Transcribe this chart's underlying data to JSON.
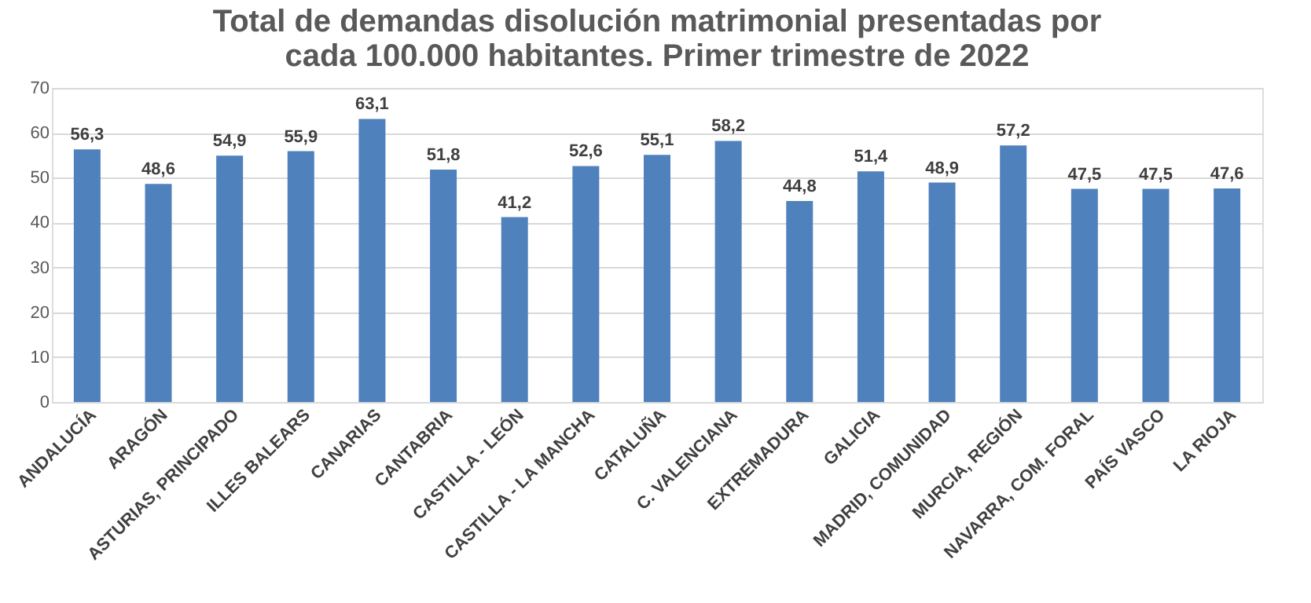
{
  "chart_data": {
    "type": "bar",
    "title": "Total de demandas disolución matrimonial presentadas por\ncada 100.000 habitantes. Primer trimestre de 2022",
    "categories": [
      "ANDALUCÍA",
      "ARAGÓN",
      "ASTURIAS, PRINCIPADO",
      "ILLES BALEARS",
      "CANARIAS",
      "CANTABRIA",
      "CASTILLA - LEÓN",
      "CASTILLA - LA MANCHA",
      "CATALUÑA",
      "C. VALENCIANA",
      "EXTREMADURA",
      "GALICIA",
      "MADRID, COMUNIDAD",
      "MURCIA, REGIÓN",
      "NAVARRA, COM. FORAL",
      "PAÍS VASCO",
      "LA RIOJA"
    ],
    "values": [
      56.3,
      48.6,
      54.9,
      55.9,
      63.1,
      51.8,
      41.2,
      52.6,
      55.1,
      58.2,
      44.8,
      51.4,
      48.9,
      57.2,
      47.5,
      47.5,
      47.6
    ],
    "value_labels": [
      "56,3",
      "48,6",
      "54,9",
      "55,9",
      "63,1",
      "51,8",
      "41,2",
      "52,6",
      "55,1",
      "58,2",
      "44,8",
      "51,4",
      "48,9",
      "57,2",
      "47,5",
      "47,5",
      "47,6"
    ],
    "color": "#4f81bd",
    "ylim": [
      0,
      70
    ],
    "yticks": [
      0,
      10,
      20,
      30,
      40,
      50,
      60,
      70
    ],
    "grid": "y"
  }
}
